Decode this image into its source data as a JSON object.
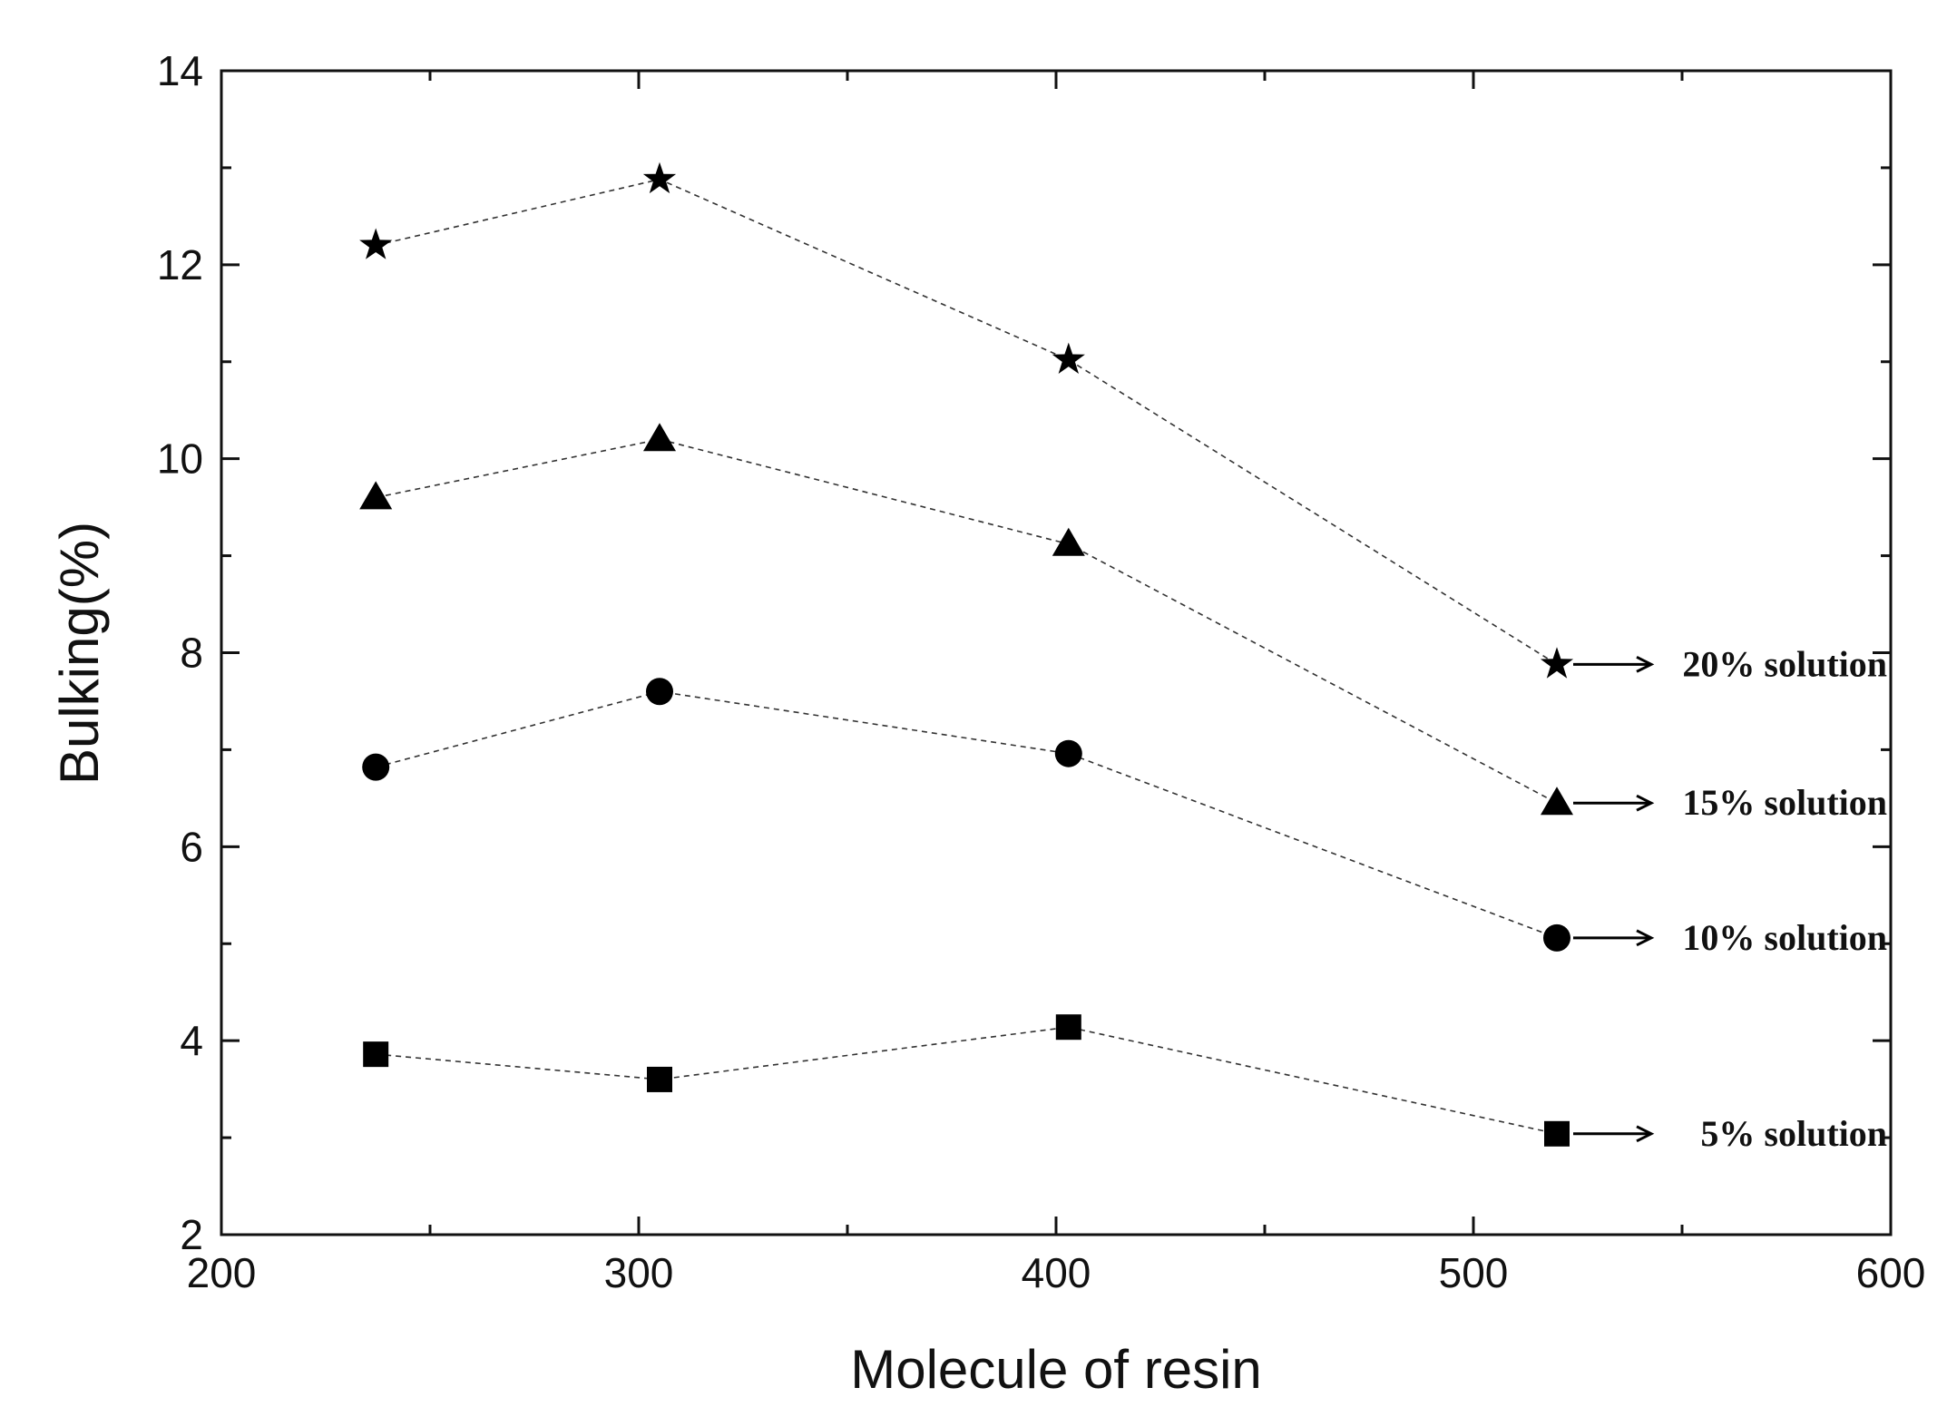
{
  "chart_data": {
    "type": "scatter",
    "title": "",
    "xlabel": "Molecule of resin",
    "ylabel": "Bulking(%)",
    "xlim": [
      200,
      600
    ],
    "ylim": [
      2,
      14
    ],
    "xticks": [
      200,
      300,
      400,
      500,
      600
    ],
    "yticks": [
      2,
      4,
      6,
      8,
      10,
      12,
      14
    ],
    "grid": false,
    "line_style": "dashed",
    "series": [
      {
        "name": "20% solution",
        "marker": "star",
        "x": [
          237,
          305,
          403,
          520
        ],
        "y": [
          12.2,
          12.88,
          11.02,
          7.88
        ]
      },
      {
        "name": "15% solution",
        "marker": "triangle",
        "x": [
          237,
          305,
          403,
          520
        ],
        "y": [
          9.6,
          10.2,
          9.12,
          6.45
        ]
      },
      {
        "name": "10% solution",
        "marker": "circle",
        "x": [
          237,
          305,
          403,
          520
        ],
        "y": [
          6.82,
          7.6,
          6.96,
          5.06
        ]
      },
      {
        "name": "5% solution",
        "marker": "square",
        "x": [
          237,
          305,
          403,
          520
        ],
        "y": [
          3.86,
          3.6,
          4.14,
          3.04
        ]
      }
    ],
    "annotations": [
      {
        "text": "20% solution",
        "series": 0
      },
      {
        "text": "15% solution",
        "series": 1
      },
      {
        "text": "10% solution",
        "series": 2
      },
      {
        "text": "5% solution",
        "series": 3
      }
    ]
  }
}
